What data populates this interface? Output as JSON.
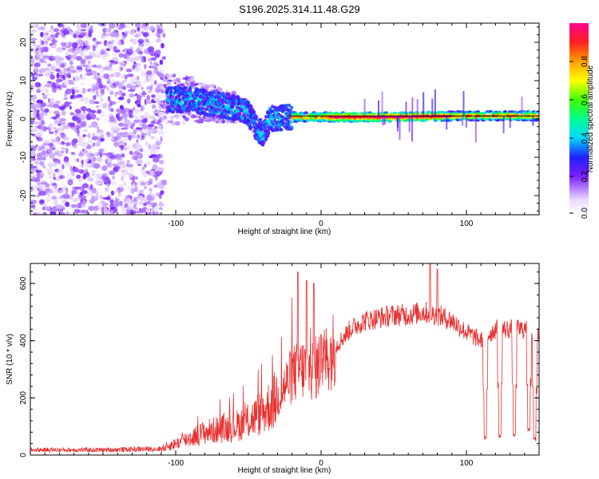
{
  "figure_title": "S196.2025.314.11.48.G29",
  "chart_data": [
    {
      "type": "heatmap",
      "xlabel": "Height of straight line (km)",
      "ylabel": "Frequency (Hz)",
      "xlim": [
        -200,
        150
      ],
      "ylim": [
        -25,
        25
      ],
      "xticks": [
        -100,
        0,
        100
      ],
      "yticks": [
        -20,
        -10,
        0,
        10,
        20
      ],
      "colorbar": {
        "label": "Normalized spectral amplitude",
        "ticks": [
          "0.0",
          "0.2",
          "0.4",
          "0.6",
          "0.8"
        ],
        "range": [
          0,
          1
        ]
      },
      "reference_line_hz": 0.8,
      "ridge": {
        "description": "noise field below -108 km; band converging from ~5 Hz at -105 km to ~0.5 Hz near -10 km, steady near 0.5 Hz to 150 km",
        "points": [
          [
            -105,
            5
          ],
          [
            -90,
            5
          ],
          [
            -75,
            4
          ],
          [
            -60,
            3
          ],
          [
            -50,
            1.5
          ],
          [
            -45,
            -2
          ],
          [
            -40,
            -4
          ],
          [
            -35,
            0
          ],
          [
            -25,
            0.5
          ],
          [
            -10,
            0.5
          ],
          [
            0,
            0.5
          ],
          [
            50,
            0.5
          ],
          [
            100,
            0.8
          ],
          [
            150,
            0.8
          ]
        ]
      },
      "noise_region_km": [
        -200,
        -108
      ]
    },
    {
      "type": "line",
      "color": "#e83030",
      "xlabel": "Height of straight line (km)",
      "ylabel": "SNR (10 * v/v)",
      "xlim": [
        -200,
        150
      ],
      "ylim": [
        0,
        670
      ],
      "xticks": [
        -100,
        0,
        100
      ],
      "yticks": [
        0,
        200,
        400,
        600
      ],
      "envelope": {
        "x": [
          -200,
          -150,
          -110,
          -100,
          -90,
          -80,
          -70,
          -60,
          -50,
          -40,
          -30,
          -25,
          -20,
          -15,
          -10,
          -5,
          0,
          10,
          20,
          30,
          40,
          50,
          60,
          70,
          80,
          90,
          100,
          110,
          120,
          130,
          140,
          150
        ],
        "y": [
          18,
          18,
          22,
          40,
          60,
          80,
          90,
          100,
          120,
          150,
          200,
          240,
          280,
          300,
          300,
          300,
          320,
          380,
          440,
          470,
          480,
          490,
          490,
          500,
          490,
          470,
          430,
          400,
          440,
          440,
          440,
          410
        ]
      },
      "spikes": [
        [
          -16,
          640
        ],
        [
          -10,
          610
        ],
        [
          -5,
          600
        ],
        [
          0,
          420
        ],
        [
          75,
          670
        ],
        [
          80,
          650
        ]
      ],
      "dropouts": [
        [
          113,
          50
        ],
        [
          123,
          60
        ],
        [
          133,
          60
        ],
        [
          143,
          80
        ],
        [
          147,
          50
        ]
      ]
    }
  ]
}
